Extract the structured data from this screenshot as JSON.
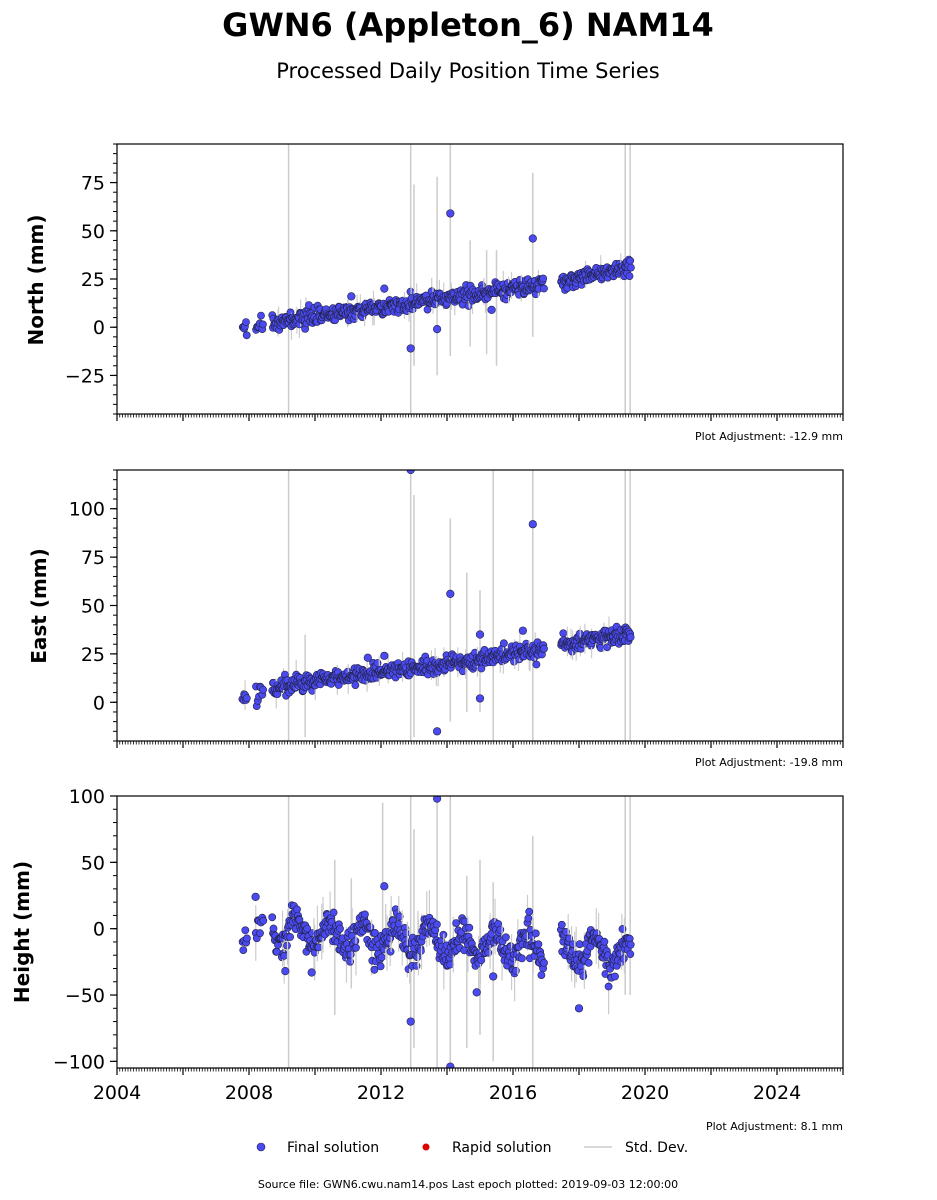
{
  "header": {
    "title": "GWN6 (Appleton_6) NAM14",
    "subtitle": "Processed Daily Position Time Series"
  },
  "colors": {
    "final": "#4a4af0",
    "final_edge": "#222244",
    "rapid": "#dd0000",
    "stddev": "#cccccc"
  },
  "legend": {
    "final": "Final solution",
    "rapid": "Rapid solution",
    "stddev": "Std. Dev."
  },
  "footer": {
    "source": "Source file: GWN6.cwu.nam14.pos  Last epoch plotted: 2019-09-03 12:00:00"
  },
  "chart_data": [
    {
      "type": "scatter",
      "ylabel": "North (mm)",
      "adjustment": "Plot Adjustment: -12.9 mm",
      "xlim": [
        2004,
        2026
      ],
      "ylim": [
        -45,
        95
      ],
      "yticks": [
        -25,
        0,
        25,
        50,
        75
      ],
      "ytick_labels": [
        "−25",
        "0",
        "25",
        "50",
        "75"
      ],
      "trend": [
        [
          2007.8,
          0
        ],
        [
          2016.9,
          22
        ],
        [
          2017.5,
          24
        ],
        [
          2019.55,
          31
        ]
      ],
      "wave_amp": 0,
      "noise": 2,
      "outliers": [
        [
          2014.1,
          59
        ],
        [
          2016.6,
          46
        ],
        [
          2012.9,
          -11
        ],
        [
          2013.7,
          -1
        ],
        [
          2015.35,
          9
        ],
        [
          2011.1,
          16
        ],
        [
          2012.1,
          20
        ]
      ],
      "errorbars": [
        [
          2009.2,
          -45,
          95
        ],
        [
          2012.9,
          -45,
          95
        ],
        [
          2013.0,
          -20,
          74
        ],
        [
          2013.7,
          -25,
          78
        ],
        [
          2014.1,
          -15,
          95
        ],
        [
          2014.7,
          -10,
          45
        ],
        [
          2015.2,
          -14,
          40
        ],
        [
          2015.5,
          -20,
          40
        ],
        [
          2016.6,
          -5,
          80
        ],
        [
          2019.4,
          -45,
          95
        ],
        [
          2019.55,
          -45,
          95
        ]
      ]
    },
    {
      "type": "scatter",
      "ylabel": "East (mm)",
      "adjustment": "Plot Adjustment: -19.8 mm",
      "xlim": [
        2004,
        2026
      ],
      "ylim": [
        -20,
        120
      ],
      "yticks": [
        0,
        25,
        50,
        75,
        100
      ],
      "ytick_labels": [
        "0",
        "25",
        "50",
        "75",
        "100"
      ],
      "trend": [
        [
          2007.9,
          2
        ],
        [
          2008.7,
          8
        ],
        [
          2016.9,
          27
        ],
        [
          2017.5,
          30
        ],
        [
          2019.55,
          36
        ]
      ],
      "wave_amp": 0,
      "noise": 2.2,
      "outliers": [
        [
          2012.9,
          120
        ],
        [
          2016.6,
          92
        ],
        [
          2014.1,
          56
        ],
        [
          2015.0,
          2
        ],
        [
          2013.7,
          -15
        ],
        [
          2015.0,
          35
        ],
        [
          2016.3,
          37
        ],
        [
          2012.1,
          24
        ],
        [
          2011.6,
          23
        ]
      ],
      "errorbars": [
        [
          2009.2,
          -20,
          120
        ],
        [
          2009.7,
          -18,
          35
        ],
        [
          2012.9,
          -20,
          120
        ],
        [
          2013.0,
          -18,
          107
        ],
        [
          2014.1,
          -10,
          95
        ],
        [
          2014.6,
          -5,
          67
        ],
        [
          2015.0,
          -5,
          58
        ],
        [
          2015.4,
          -20,
          120
        ],
        [
          2016.6,
          -20,
          120
        ],
        [
          2019.4,
          -20,
          120
        ],
        [
          2019.55,
          -20,
          120
        ]
      ]
    },
    {
      "type": "scatter",
      "ylabel": "Height (mm)",
      "adjustment": "Plot Adjustment: 8.1 mm",
      "xlim": [
        2004,
        2026
      ],
      "xticks": [
        2004,
        2008,
        2012,
        2016,
        2020,
        2024
      ],
      "xtick_labels": [
        "2004",
        "2008",
        "2012",
        "2016",
        "2020",
        "2024"
      ],
      "ylim": [
        -105,
        100
      ],
      "yticks": [
        -100,
        -50,
        0,
        50,
        100
      ],
      "ytick_labels": [
        "−100",
        "−50",
        "0",
        "50",
        "100"
      ],
      "trend": [
        [
          2007.8,
          0
        ],
        [
          2019.55,
          -20
        ]
      ],
      "wave_amp": 10,
      "noise": 6,
      "outliers": [
        [
          2013.7,
          98
        ],
        [
          2012.9,
          -70
        ],
        [
          2014.1,
          -104
        ],
        [
          2012.1,
          32
        ],
        [
          2008.2,
          24
        ],
        [
          2014.9,
          -48
        ],
        [
          2015.4,
          -36
        ],
        [
          2018.0,
          -60
        ],
        [
          2009.1,
          -32
        ],
        [
          2009.9,
          -33
        ]
      ],
      "errorbars": [
        [
          2009.2,
          -105,
          100
        ],
        [
          2010.6,
          -65,
          52
        ],
        [
          2011.1,
          -45,
          38
        ],
        [
          2012.05,
          -30,
          95
        ],
        [
          2012.9,
          -105,
          100
        ],
        [
          2013.0,
          -90,
          75
        ],
        [
          2013.7,
          -105,
          100
        ],
        [
          2014.1,
          -105,
          100
        ],
        [
          2014.6,
          -90,
          40
        ],
        [
          2015.0,
          -80,
          52
        ],
        [
          2015.4,
          -100,
          35
        ],
        [
          2016.6,
          -105,
          70
        ],
        [
          2019.4,
          -50,
          100
        ],
        [
          2019.55,
          -50,
          100
        ]
      ]
    }
  ]
}
